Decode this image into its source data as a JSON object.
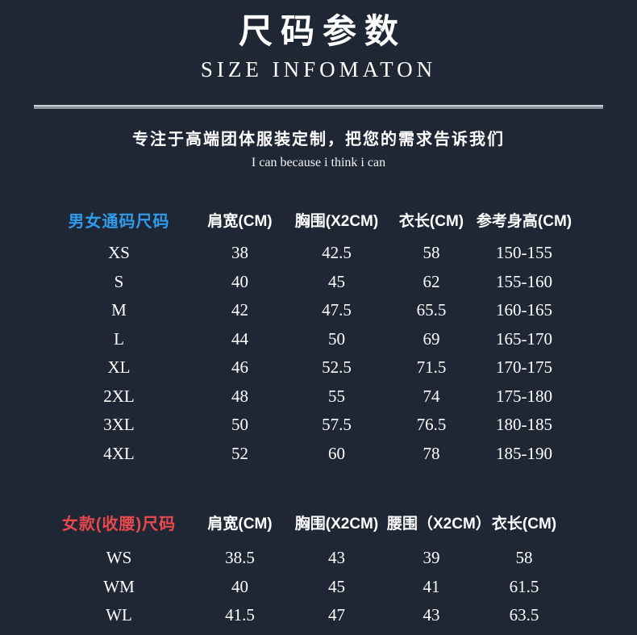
{
  "page": {
    "background_color": "#1f2634",
    "text_color": "#ffffff",
    "divider_color": "#8d939d"
  },
  "header": {
    "title_cn": "尺码参数",
    "title_en": "SIZE INFOMATON"
  },
  "tagline": {
    "cn": "专注于高端团体服装定制，把您的需求告诉我们",
    "en": "I can because i think i can"
  },
  "unisex_table": {
    "label": "男女通码尺码",
    "label_color": "#2f9ceb",
    "columns": [
      "肩宽(CM)",
      "胸围(X2CM)",
      "衣长(CM)",
      "参考身高(CM)"
    ],
    "rows": [
      {
        "size": "XS",
        "values": [
          "38",
          "42.5",
          "58",
          "150-155"
        ]
      },
      {
        "size": "S",
        "values": [
          "40",
          "45",
          "62",
          "155-160"
        ]
      },
      {
        "size": "M",
        "values": [
          "42",
          "47.5",
          "65.5",
          "160-165"
        ]
      },
      {
        "size": "L",
        "values": [
          "44",
          "50",
          "69",
          "165-170"
        ]
      },
      {
        "size": "XL",
        "values": [
          "46",
          "52.5",
          "71.5",
          "170-175"
        ]
      },
      {
        "size": "2XL",
        "values": [
          "48",
          "55",
          "74",
          "175-180"
        ]
      },
      {
        "size": "3XL",
        "values": [
          "50",
          "57.5",
          "76.5",
          "180-185"
        ]
      },
      {
        "size": "4XL",
        "values": [
          "52",
          "60",
          "78",
          "185-190"
        ]
      }
    ]
  },
  "women_table": {
    "label": "女款(收腰)尺码",
    "label_color": "#e8494e",
    "columns": [
      "肩宽(CM)",
      "胸围(X2CM)",
      "腰围（X2CM）",
      "衣长(CM)"
    ],
    "rows": [
      {
        "size": "WS",
        "values": [
          "38.5",
          "43",
          "39",
          "58"
        ]
      },
      {
        "size": "WM",
        "values": [
          "40",
          "45",
          "41",
          "61.5"
        ]
      },
      {
        "size": "WL",
        "values": [
          "41.5",
          "47",
          "43",
          "63.5"
        ]
      }
    ]
  }
}
